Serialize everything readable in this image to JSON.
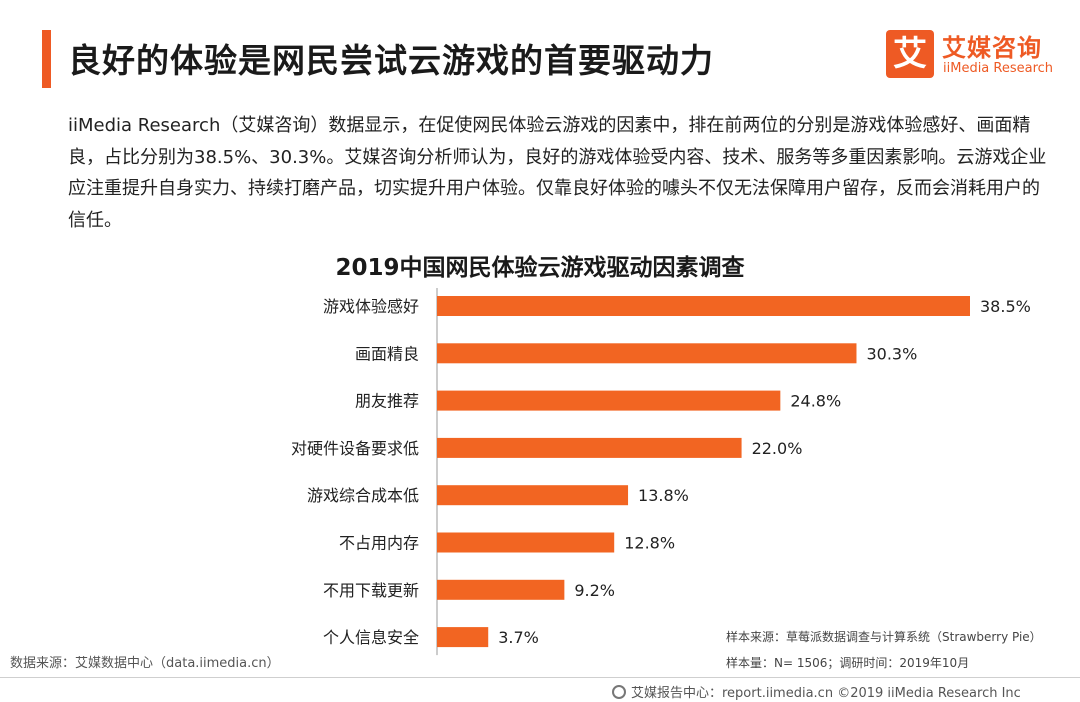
{
  "header": {
    "title": "良好的体验是网民尝试云游戏的首要驱动力"
  },
  "logo": {
    "mark": "艾",
    "name_cn": "艾媒咨询",
    "name_en": "iiMedia Research"
  },
  "intro": "iiMedia Research（艾媒咨询）数据显示，在促使网民体验云游戏的因素中，排在前两位的分别是游戏体验感好、画面精良，占比分别为38.5%、30.3%。艾媒咨询分析师认为，良好的游戏体验受内容、技术、服务等多重因素影响。云游戏企业应注重提升自身实力、持续打磨产品，切实提升用户体验。仅靠良好体验的噱头不仅无法保障用户留存，反而会消耗用户的信任。",
  "chart_data": {
    "type": "bar",
    "orientation": "horizontal",
    "title": "2019中国网民体验云游戏驱动因素调查",
    "categories": [
      "游戏体验感好",
      "画面精良",
      "朋友推荐",
      "对硬件设备要求低",
      "游戏综合成本低",
      "不占用内存",
      "不用下载更新",
      "个人信息安全"
    ],
    "values": [
      38.5,
      30.3,
      24.8,
      22.0,
      13.8,
      12.8,
      9.2,
      3.7
    ],
    "value_labels": [
      "38.5%",
      "30.3%",
      "24.8%",
      "22.0%",
      "13.8%",
      "12.8%",
      "9.2%",
      "3.7%"
    ],
    "unit": "%",
    "xlim": [
      0,
      40
    ],
    "grid": false,
    "bar_color": "#f26522"
  },
  "sources": {
    "left": "数据来源：艾媒数据中心（data.iimedia.cn）",
    "sample_source": "样本来源：草莓派数据调查与计算系统（Strawberry Pie）",
    "sample_size": "样本量：N= 1506；调研时间：2019年10月"
  },
  "footer": {
    "text": "艾媒报告中心：report.iimedia.cn ©2019  iiMedia Research  Inc"
  }
}
